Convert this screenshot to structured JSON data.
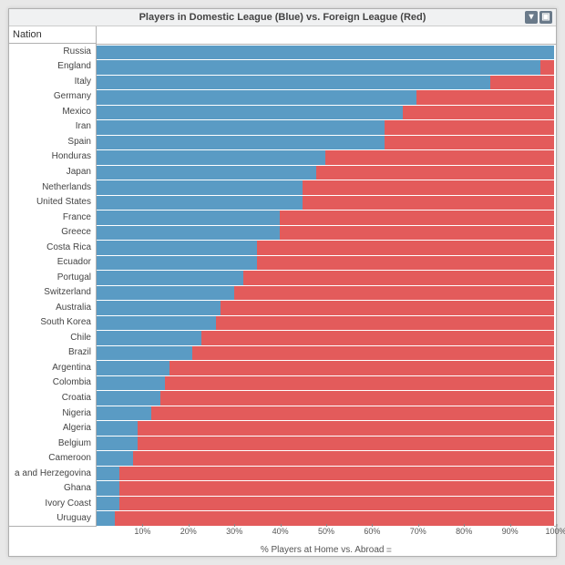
{
  "chart": {
    "type": "stacked-bar-horizontal",
    "title": "Players in Domestic League (Blue) vs. Foreign League (Red)",
    "y_header": "Nation",
    "x_label": "% Players at Home vs. Abroad",
    "domestic_color": "#5a9bc4",
    "foreign_color": "#e35b5b",
    "background_color": "#ffffff",
    "border_color": "#b0b0b0",
    "xlim": [
      0,
      100
    ],
    "ticks": [
      "10%",
      "20%",
      "30%",
      "40%",
      "50%",
      "60%",
      "70%",
      "80%",
      "90%",
      "100%"
    ],
    "tick_positions": [
      10,
      20,
      30,
      40,
      50,
      60,
      70,
      80,
      90,
      100
    ],
    "nations": [
      {
        "name": "Russia",
        "domestic": 100
      },
      {
        "name": "England",
        "domestic": 97
      },
      {
        "name": "Italy",
        "domestic": 86
      },
      {
        "name": "Germany",
        "domestic": 70
      },
      {
        "name": "Mexico",
        "domestic": 67
      },
      {
        "name": "Iran",
        "domestic": 63
      },
      {
        "name": "Spain",
        "domestic": 63
      },
      {
        "name": "Honduras",
        "domestic": 50
      },
      {
        "name": "Japan",
        "domestic": 48
      },
      {
        "name": "Netherlands",
        "domestic": 45
      },
      {
        "name": "United States",
        "domestic": 45
      },
      {
        "name": "France",
        "domestic": 40
      },
      {
        "name": "Greece",
        "domestic": 40
      },
      {
        "name": "Costa Rica",
        "domestic": 35
      },
      {
        "name": "Ecuador",
        "domestic": 35
      },
      {
        "name": "Portugal",
        "domestic": 32
      },
      {
        "name": "Switzerland",
        "domestic": 30
      },
      {
        "name": "Australia",
        "domestic": 27
      },
      {
        "name": "South Korea",
        "domestic": 26
      },
      {
        "name": "Chile",
        "domestic": 23
      },
      {
        "name": "Brazil",
        "domestic": 21
      },
      {
        "name": "Argentina",
        "domestic": 16
      },
      {
        "name": "Colombia",
        "domestic": 15
      },
      {
        "name": "Croatia",
        "domestic": 14
      },
      {
        "name": "Nigeria",
        "domestic": 12
      },
      {
        "name": "Algeria",
        "domestic": 9
      },
      {
        "name": "Belgium",
        "domestic": 9
      },
      {
        "name": "Cameroon",
        "domestic": 8
      },
      {
        "name": "a and Herzegovina",
        "domestic": 5
      },
      {
        "name": "Ghana",
        "domestic": 5
      },
      {
        "name": "Ivory Coast",
        "domestic": 5
      },
      {
        "name": "Uruguay",
        "domestic": 4
      }
    ]
  }
}
